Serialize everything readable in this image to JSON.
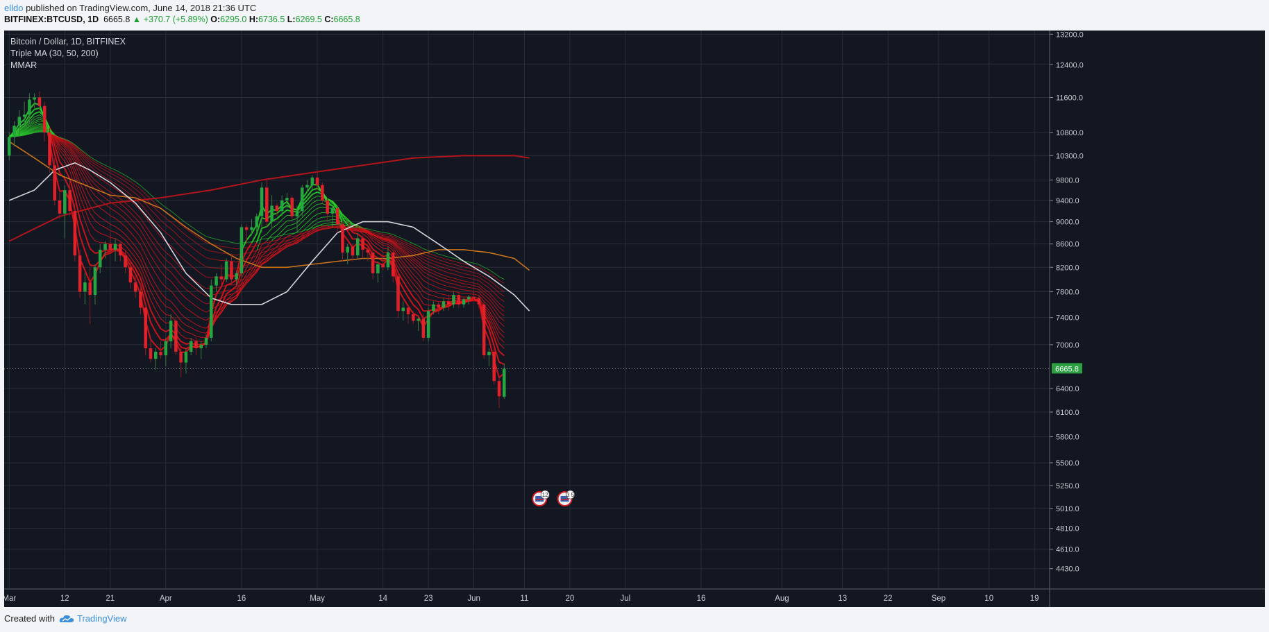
{
  "header": {
    "author": "elldo",
    "publish_text": " published on TradingView.com, June 14, 2018 21:36 UTC"
  },
  "ohlc": {
    "symbol": "BITFINEX:BTCUSD, 1D",
    "last": "6665.8",
    "change": "▲ +370.7 (+5.89%)",
    "o_label": "O:",
    "o": "6295.0",
    "h_label": "H:",
    "h": "6736.5",
    "l_label": "L:",
    "l": "6269.5",
    "c_label": "C:",
    "c": "6665.8"
  },
  "legend": {
    "title": "Bitcoin / Dollar, 1D, BITFINEX",
    "indicator1": "Triple MA (30, 50, 200)",
    "indicator2": "MMAR"
  },
  "footer": {
    "created_with": "Created with",
    "brand": "TradingView"
  },
  "colors": {
    "background": "#131722",
    "grid": "#2a2e39",
    "up": "#26a641",
    "down": "#e0222a",
    "ma30": "#d6d6dc",
    "ma50": "#c8731b",
    "ma200": "#b3141b",
    "price_tag": "#2ea043"
  },
  "chart_data": {
    "type": "candlestick",
    "scale": "log",
    "ylim": [
      4250,
      13300
    ],
    "y_ticks": [
      "13200.0",
      "12400.0",
      "11600.0",
      "10800.0",
      "10300.0",
      "9800.0",
      "9400.0",
      "9000.0",
      "8600.0",
      "8200.0",
      "7800.0",
      "7400.0",
      "7000.0",
      "6400.0",
      "6100.0",
      "5800.0",
      "5500.0",
      "5250.0",
      "5010.0",
      "4810.0",
      "4610.0",
      "4430.0"
    ],
    "x_ticks": [
      {
        "day": 0,
        "label": "Mar"
      },
      {
        "day": 11,
        "label": "12"
      },
      {
        "day": 20,
        "label": "21"
      },
      {
        "day": 31,
        "label": "Apr"
      },
      {
        "day": 46,
        "label": "16"
      },
      {
        "day": 61,
        "label": "May"
      },
      {
        "day": 74,
        "label": "14"
      },
      {
        "day": 83,
        "label": "23"
      },
      {
        "day": 92,
        "label": "Jun"
      },
      {
        "day": 102,
        "label": "11"
      },
      {
        "day": 111,
        "label": "20"
      },
      {
        "day": 122,
        "label": "Jul"
      },
      {
        "day": 137,
        "label": "16"
      },
      {
        "day": 153,
        "label": "Aug"
      },
      {
        "day": 165,
        "label": "13"
      },
      {
        "day": 174,
        "label": "22"
      },
      {
        "day": 184,
        "label": "Sep"
      },
      {
        "day": 194,
        "label": "10"
      },
      {
        "day": 203,
        "label": "19"
      }
    ],
    "x_range": [
      -1,
      206
    ],
    "last_price": "6665.8",
    "last_price_value": 6665.8,
    "event_markers": [
      {
        "day": 105,
        "label": "12"
      },
      {
        "day": 110,
        "label": "3 5"
      }
    ],
    "candles": [
      [
        10300,
        10800,
        10200,
        10700
      ],
      [
        10700,
        11050,
        10500,
        10950
      ],
      [
        10950,
        11300,
        10700,
        11150
      ],
      [
        11150,
        11500,
        10900,
        11200
      ],
      [
        11200,
        11700,
        11000,
        11550
      ],
      [
        11550,
        11700,
        11350,
        11600
      ],
      [
        11600,
        11750,
        11300,
        11400
      ],
      [
        11400,
        11500,
        10600,
        10800
      ],
      [
        10800,
        10900,
        9950,
        10100
      ],
      [
        10100,
        10250,
        9300,
        9400
      ],
      [
        9400,
        9600,
        9050,
        9150
      ],
      [
        9150,
        9700,
        8700,
        9600
      ],
      [
        9600,
        9800,
        9100,
        9200
      ],
      [
        9200,
        9350,
        8300,
        8400
      ],
      [
        8400,
        8500,
        7700,
        7800
      ],
      [
        7800,
        8100,
        7600,
        7950
      ],
      [
        7950,
        8200,
        7300,
        7750
      ],
      [
        7750,
        8250,
        7600,
        8200
      ],
      [
        8200,
        8600,
        8100,
        8500
      ],
      [
        8500,
        8650,
        8350,
        8600
      ],
      [
        8600,
        8800,
        8450,
        8500
      ],
      [
        8500,
        8700,
        8300,
        8600
      ],
      [
        8600,
        8650,
        8300,
        8400
      ],
      [
        8400,
        8500,
        8100,
        8200
      ],
      [
        8200,
        8300,
        7850,
        7950
      ],
      [
        7950,
        8050,
        7700,
        7800
      ],
      [
        7800,
        7900,
        7450,
        7550
      ],
      [
        7550,
        7600,
        6850,
        6950
      ],
      [
        6950,
        7100,
        6750,
        6800
      ],
      [
        6800,
        6950,
        6650,
        6900
      ],
      [
        6900,
        7050,
        6800,
        6850
      ],
      [
        6850,
        7100,
        6700,
        7050
      ],
      [
        7050,
        7450,
        6950,
        7350
      ],
      [
        7350,
        7400,
        6850,
        6900
      ],
      [
        6900,
        6950,
        6550,
        6750
      ],
      [
        6750,
        6950,
        6600,
        6900
      ],
      [
        6900,
        7100,
        6850,
        7050
      ],
      [
        7050,
        7100,
        6850,
        6950
      ],
      [
        6950,
        7050,
        6800,
        7000
      ],
      [
        7000,
        7150,
        6950,
        7100
      ],
      [
        7100,
        8000,
        7050,
        7900
      ],
      [
        7900,
        8100,
        7800,
        8050
      ],
      [
        8050,
        8250,
        7900,
        8000
      ],
      [
        8000,
        8350,
        7950,
        8300
      ],
      [
        8300,
        8400,
        7900,
        8000
      ],
      [
        8000,
        8150,
        7900,
        8100
      ],
      [
        8100,
        8950,
        8050,
        8900
      ],
      [
        8900,
        8950,
        8600,
        8850
      ],
      [
        8850,
        9050,
        8750,
        8900
      ],
      [
        8900,
        9150,
        8800,
        9100
      ],
      [
        9100,
        9750,
        8800,
        9650
      ],
      [
        9650,
        9800,
        8900,
        9000
      ],
      [
        9000,
        9500,
        8900,
        9300
      ],
      [
        9300,
        9350,
        9100,
        9200
      ],
      [
        9200,
        9500,
        9100,
        9400
      ],
      [
        9400,
        9550,
        9250,
        9450
      ],
      [
        9450,
        9500,
        9050,
        9100
      ],
      [
        9100,
        9300,
        8800,
        9200
      ],
      [
        9200,
        9700,
        9100,
        9650
      ],
      [
        9650,
        9800,
        9550,
        9700
      ],
      [
        9700,
        9900,
        9600,
        9850
      ],
      [
        9850,
        10000,
        9600,
        9700
      ],
      [
        9700,
        9750,
        9350,
        9400
      ],
      [
        9400,
        9450,
        9000,
        9150
      ],
      [
        9150,
        9300,
        8900,
        9250
      ],
      [
        9250,
        9300,
        8800,
        8950
      ],
      [
        8950,
        9000,
        8300,
        8450
      ],
      [
        8450,
        8600,
        8250,
        8550
      ],
      [
        8550,
        8600,
        8300,
        8400
      ],
      [
        8400,
        8800,
        8350,
        8700
      ],
      [
        8700,
        8750,
        8350,
        8500
      ],
      [
        8500,
        8550,
        8300,
        8450
      ],
      [
        8450,
        8500,
        8000,
        8100
      ],
      [
        8100,
        8300,
        7950,
        8250
      ],
      [
        8250,
        8350,
        8150,
        8200
      ],
      [
        8200,
        8550,
        8150,
        8450
      ],
      [
        8450,
        8500,
        7950,
        8050
      ],
      [
        8050,
        8100,
        7400,
        7500
      ],
      [
        7500,
        7650,
        7350,
        7550
      ],
      [
        7550,
        7600,
        7300,
        7450
      ],
      [
        7450,
        7500,
        7300,
        7350
      ],
      [
        7350,
        7400,
        7200,
        7380
      ],
      [
        7380,
        7450,
        7050,
        7100
      ],
      [
        7100,
        7550,
        7050,
        7500
      ],
      [
        7500,
        7650,
        7450,
        7600
      ],
      [
        7600,
        7650,
        7450,
        7550
      ],
      [
        7550,
        7700,
        7500,
        7650
      ],
      [
        7650,
        7750,
        7500,
        7600
      ],
      [
        7600,
        7800,
        7550,
        7750
      ],
      [
        7750,
        7800,
        7550,
        7600
      ],
      [
        7600,
        7700,
        7550,
        7680
      ],
      [
        7680,
        7750,
        7600,
        7720
      ],
      [
        7720,
        7800,
        7650,
        7700
      ],
      [
        7700,
        7750,
        7550,
        7600
      ],
      [
        7600,
        7650,
        6800,
        6850
      ],
      [
        6850,
        6950,
        6700,
        6900
      ],
      [
        6900,
        6950,
        6450,
        6500
      ],
      [
        6500,
        6550,
        6150,
        6300
      ],
      [
        6295,
        6736.5,
        6269.5,
        6665.8
      ]
    ],
    "ma30": [
      [
        0,
        9400
      ],
      [
        5,
        9600
      ],
      [
        9,
        10000
      ],
      [
        13,
        10150
      ],
      [
        16,
        10000
      ],
      [
        20,
        9750
      ],
      [
        25,
        9350
      ],
      [
        30,
        8800
      ],
      [
        35,
        8100
      ],
      [
        40,
        7700
      ],
      [
        44,
        7600
      ],
      [
        50,
        7600
      ],
      [
        55,
        7800
      ],
      [
        60,
        8300
      ],
      [
        65,
        8800
      ],
      [
        70,
        9000
      ],
      [
        75,
        9000
      ],
      [
        80,
        8900
      ],
      [
        85,
        8600
      ],
      [
        90,
        8300
      ],
      [
        95,
        8050
      ],
      [
        100,
        7750
      ],
      [
        103,
        7500
      ]
    ],
    "ma50": [
      [
        0,
        10600
      ],
      [
        5,
        10250
      ],
      [
        10,
        9900
      ],
      [
        15,
        9700
      ],
      [
        20,
        9500
      ],
      [
        25,
        9450
      ],
      [
        30,
        9250
      ],
      [
        35,
        8900
      ],
      [
        40,
        8600
      ],
      [
        45,
        8350
      ],
      [
        50,
        8200
      ],
      [
        55,
        8200
      ],
      [
        60,
        8250
      ],
      [
        65,
        8300
      ],
      [
        70,
        8350
      ],
      [
        75,
        8350
      ],
      [
        80,
        8400
      ],
      [
        85,
        8500
      ],
      [
        90,
        8500
      ],
      [
        95,
        8450
      ],
      [
        100,
        8350
      ],
      [
        103,
        8150
      ]
    ],
    "ma200": [
      [
        0,
        8650
      ],
      [
        10,
        9100
      ],
      [
        20,
        9350
      ],
      [
        30,
        9450
      ],
      [
        40,
        9600
      ],
      [
        50,
        9800
      ],
      [
        60,
        9950
      ],
      [
        70,
        10100
      ],
      [
        80,
        10250
      ],
      [
        90,
        10300
      ],
      [
        100,
        10300
      ],
      [
        103,
        10250
      ]
    ]
  }
}
